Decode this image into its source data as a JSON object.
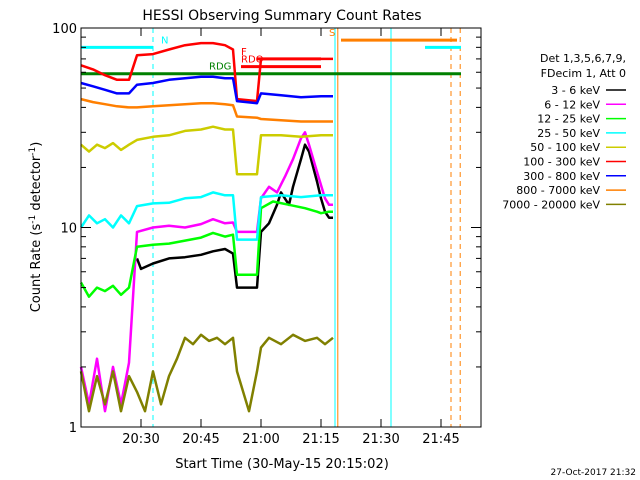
{
  "chart_data": {
    "type": "line",
    "title": "HESSI Observing Summary Count Rates",
    "xlabel": "Start Time (30-May-15 20:15:02)",
    "ylabel_main": "Count Rate (s",
    "ylabel_sup": "-1",
    "ylabel_tail": " detector",
    "ylabel_sup2": "-1",
    "ylabel_close": ")",
    "yscale": "log",
    "x_unit": "minutes after 20:15:02",
    "xlim": [
      0,
      100
    ],
    "ylim": [
      1,
      100
    ],
    "x_ticks": [
      {
        "x": 15,
        "label": "20:30"
      },
      {
        "x": 30,
        "label": "20:45"
      },
      {
        "x": 45,
        "label": "21:00"
      },
      {
        "x": 60,
        "label": "21:15"
      },
      {
        "x": 75,
        "label": "21:30"
      },
      {
        "x": 90,
        "label": "21:45"
      }
    ],
    "y_ticks": [
      {
        "y": 1,
        "label": "1"
      },
      {
        "y": 10,
        "label": "10"
      },
      {
        "y": 100,
        "label": "100"
      }
    ],
    "legend_header": [
      "Det 1,3,5,6,7,9,",
      "FDecim 1, Att 0"
    ],
    "series": [
      {
        "name": "3 - 6 keV",
        "color": "#000000",
        "points": [
          [
            14,
            7.0
          ],
          [
            15,
            6.2
          ],
          [
            18,
            6.6
          ],
          [
            22,
            7.0
          ],
          [
            26,
            7.1
          ],
          [
            30,
            7.3
          ],
          [
            33,
            7.6
          ],
          [
            36,
            7.8
          ],
          [
            38,
            7.4
          ],
          [
            39,
            5.0
          ],
          [
            44,
            5.0
          ],
          [
            45,
            9.5
          ],
          [
            47,
            10.5
          ],
          [
            49,
            13
          ],
          [
            50,
            15
          ],
          [
            52,
            13
          ],
          [
            53,
            16
          ],
          [
            55,
            22
          ],
          [
            56,
            26
          ],
          [
            57,
            24
          ],
          [
            59,
            17
          ],
          [
            60,
            14
          ],
          [
            61,
            12
          ],
          [
            62,
            11.2
          ],
          [
            63,
            11.2
          ]
        ]
      },
      {
        "name": "6 - 12 keV",
        "color": "#ff00ff",
        "points": [
          [
            0,
            2
          ],
          [
            2,
            1.3
          ],
          [
            4,
            2.2
          ],
          [
            6,
            1.2
          ],
          [
            8,
            2.0
          ],
          [
            10,
            1.3
          ],
          [
            12,
            2.1
          ],
          [
            14,
            9.5
          ],
          [
            18,
            10
          ],
          [
            22,
            10.2
          ],
          [
            26,
            10
          ],
          [
            30,
            10.4
          ],
          [
            33,
            11
          ],
          [
            36,
            10.5
          ],
          [
            38,
            10.6
          ],
          [
            39,
            9.5
          ],
          [
            44,
            9.5
          ],
          [
            45,
            14
          ],
          [
            47,
            16
          ],
          [
            49,
            15
          ],
          [
            51,
            18
          ],
          [
            53,
            22
          ],
          [
            55,
            28
          ],
          [
            56,
            30
          ],
          [
            57,
            26
          ],
          [
            59,
            19
          ],
          [
            61,
            14
          ],
          [
            62,
            13
          ],
          [
            63,
            13
          ]
        ]
      },
      {
        "name": "12 - 25 keV",
        "color": "#00ff00",
        "points": [
          [
            0,
            5.3
          ],
          [
            2,
            4.5
          ],
          [
            4,
            5.0
          ],
          [
            6,
            4.8
          ],
          [
            8,
            5.1
          ],
          [
            10,
            4.6
          ],
          [
            12,
            5.0
          ],
          [
            14,
            8.0
          ],
          [
            18,
            8.2
          ],
          [
            22,
            8.3
          ],
          [
            26,
            8.6
          ],
          [
            30,
            8.9
          ],
          [
            33,
            9.4
          ],
          [
            36,
            9.0
          ],
          [
            38,
            9.2
          ],
          [
            39,
            5.8
          ],
          [
            44,
            5.8
          ],
          [
            45,
            12.5
          ],
          [
            48,
            13.5
          ],
          [
            52,
            13
          ],
          [
            56,
            12.5
          ],
          [
            59,
            12
          ],
          [
            60,
            11.8
          ],
          [
            62,
            12
          ],
          [
            63,
            12
          ]
        ]
      },
      {
        "name": "25 - 50 keV",
        "color": "#00ffff",
        "points": [
          [
            0,
            10
          ],
          [
            2,
            11.5
          ],
          [
            4,
            10.5
          ],
          [
            6,
            11
          ],
          [
            8,
            10
          ],
          [
            10,
            11.5
          ],
          [
            12,
            10.5
          ],
          [
            14,
            12.8
          ],
          [
            18,
            13.2
          ],
          [
            22,
            13.3
          ],
          [
            26,
            14
          ],
          [
            30,
            14.2
          ],
          [
            33,
            15
          ],
          [
            36,
            14.5
          ],
          [
            38,
            14.5
          ],
          [
            39,
            8.7
          ],
          [
            44,
            8.7
          ],
          [
            45,
            14.2
          ],
          [
            50,
            14.5
          ],
          [
            55,
            14.2
          ],
          [
            60,
            14.5
          ],
          [
            63,
            14.5
          ]
        ]
      },
      {
        "name": "50 - 100 keV",
        "color": "#cccc00",
        "points": [
          [
            0,
            26
          ],
          [
            2,
            24
          ],
          [
            4,
            26
          ],
          [
            6,
            25
          ],
          [
            8,
            26.5
          ],
          [
            10,
            24.5
          ],
          [
            12,
            26
          ],
          [
            14,
            27.5
          ],
          [
            18,
            28.5
          ],
          [
            22,
            29
          ],
          [
            26,
            30.5
          ],
          [
            30,
            31
          ],
          [
            33,
            32
          ],
          [
            36,
            31
          ],
          [
            38,
            31
          ],
          [
            39,
            18.5
          ],
          [
            44,
            18.5
          ],
          [
            45,
            29
          ],
          [
            50,
            29
          ],
          [
            55,
            28.5
          ],
          [
            60,
            29
          ],
          [
            63,
            29
          ]
        ]
      },
      {
        "name": "100 - 300 keV",
        "color": "#ff0000",
        "points": [
          [
            0,
            65
          ],
          [
            3,
            62
          ],
          [
            6,
            58
          ],
          [
            9,
            55
          ],
          [
            12,
            55
          ],
          [
            14,
            73
          ],
          [
            18,
            74
          ],
          [
            22,
            78
          ],
          [
            26,
            82
          ],
          [
            30,
            84
          ],
          [
            33,
            84
          ],
          [
            36,
            82
          ],
          [
            38,
            78
          ],
          [
            39,
            44
          ],
          [
            44,
            43
          ],
          [
            45,
            70
          ],
          [
            50,
            70
          ],
          [
            55,
            70
          ],
          [
            60,
            70
          ],
          [
            63,
            70
          ]
        ]
      },
      {
        "name": "300 - 800 keV",
        "color": "#0000ff",
        "points": [
          [
            0,
            53
          ],
          [
            3,
            51
          ],
          [
            6,
            49
          ],
          [
            9,
            47
          ],
          [
            12,
            47
          ],
          [
            14,
            52
          ],
          [
            18,
            53
          ],
          [
            22,
            55
          ],
          [
            26,
            56
          ],
          [
            30,
            57
          ],
          [
            33,
            57
          ],
          [
            36,
            56
          ],
          [
            38,
            56
          ],
          [
            39,
            43
          ],
          [
            44,
            42
          ],
          [
            45,
            47
          ],
          [
            50,
            46
          ],
          [
            55,
            45
          ],
          [
            60,
            45.5
          ],
          [
            63,
            45.5
          ]
        ]
      },
      {
        "name": "800 - 7000 keV",
        "color": "#ff7f00",
        "points": [
          [
            0,
            44
          ],
          [
            3,
            42.5
          ],
          [
            6,
            41.5
          ],
          [
            9,
            40.5
          ],
          [
            12,
            40
          ],
          [
            14,
            40
          ],
          [
            18,
            40.5
          ],
          [
            22,
            41
          ],
          [
            26,
            41.5
          ],
          [
            30,
            42
          ],
          [
            33,
            42
          ],
          [
            36,
            41.5
          ],
          [
            38,
            41
          ],
          [
            39,
            36
          ],
          [
            44,
            35.5
          ],
          [
            45,
            35
          ],
          [
            50,
            34.5
          ],
          [
            55,
            34
          ],
          [
            60,
            34
          ],
          [
            63,
            34
          ]
        ]
      },
      {
        "name": "7000 - 20000 keV",
        "color": "#808000",
        "points": [
          [
            0,
            1.9
          ],
          [
            2,
            1.2
          ],
          [
            4,
            1.8
          ],
          [
            6,
            1.3
          ],
          [
            8,
            1.9
          ],
          [
            10,
            1.2
          ],
          [
            12,
            1.8
          ],
          [
            14,
            1.5
          ],
          [
            16,
            1.2
          ],
          [
            18,
            1.9
          ],
          [
            20,
            1.3
          ],
          [
            22,
            1.8
          ],
          [
            24,
            2.2
          ],
          [
            26,
            2.8
          ],
          [
            28,
            2.6
          ],
          [
            30,
            2.9
          ],
          [
            32,
            2.7
          ],
          [
            34,
            2.8
          ],
          [
            36,
            2.6
          ],
          [
            38,
            2.8
          ],
          [
            39,
            1.9
          ],
          [
            42,
            1.2
          ],
          [
            44,
            1.9
          ],
          [
            45,
            2.5
          ],
          [
            47,
            2.8
          ],
          [
            50,
            2.6
          ],
          [
            53,
            2.9
          ],
          [
            56,
            2.7
          ],
          [
            59,
            2.8
          ],
          [
            61,
            2.6
          ],
          [
            63,
            2.8
          ]
        ]
      }
    ],
    "flag_bars": [
      {
        "label": "N",
        "color": "#00ffff",
        "y": 80,
        "segments": [
          [
            0,
            18
          ],
          [
            86,
            95
          ]
        ],
        "label_x": 20
      },
      {
        "label": "S",
        "color": "#ff7f00",
        "y": 87,
        "segments": [
          [
            65,
            94
          ]
        ],
        "label_x": 62
      },
      {
        "label": "F",
        "color": "#ff0000",
        "y": 70,
        "segments": [
          [
            44,
            60
          ]
        ],
        "label_x": 40
      },
      {
        "label": "RDO",
        "color": "#ff0000",
        "y": 64,
        "segments": [
          [
            40,
            60
          ]
        ],
        "label_x": 40
      },
      {
        "label": "RDG",
        "color": "#008000",
        "y": 59,
        "segments": [
          [
            0,
            95
          ]
        ],
        "label_x": 32
      }
    ],
    "vertical_markers": [
      {
        "x": 18,
        "color": "#00ffff",
        "style": "dashed"
      },
      {
        "x": 63.5,
        "color": "#00ffff",
        "style": "solid"
      },
      {
        "x": 64.2,
        "color": "#ff7f00",
        "style": "solid"
      },
      {
        "x": 77.5,
        "color": "#00ffff",
        "style": "solid"
      },
      {
        "x": 92.5,
        "color": "#ff7f00",
        "style": "dashed"
      },
      {
        "x": 94.8,
        "color": "#ff7f00",
        "style": "dashed"
      }
    ]
  },
  "footer": {
    "timestamp": "27-Oct-2017 21:32"
  }
}
